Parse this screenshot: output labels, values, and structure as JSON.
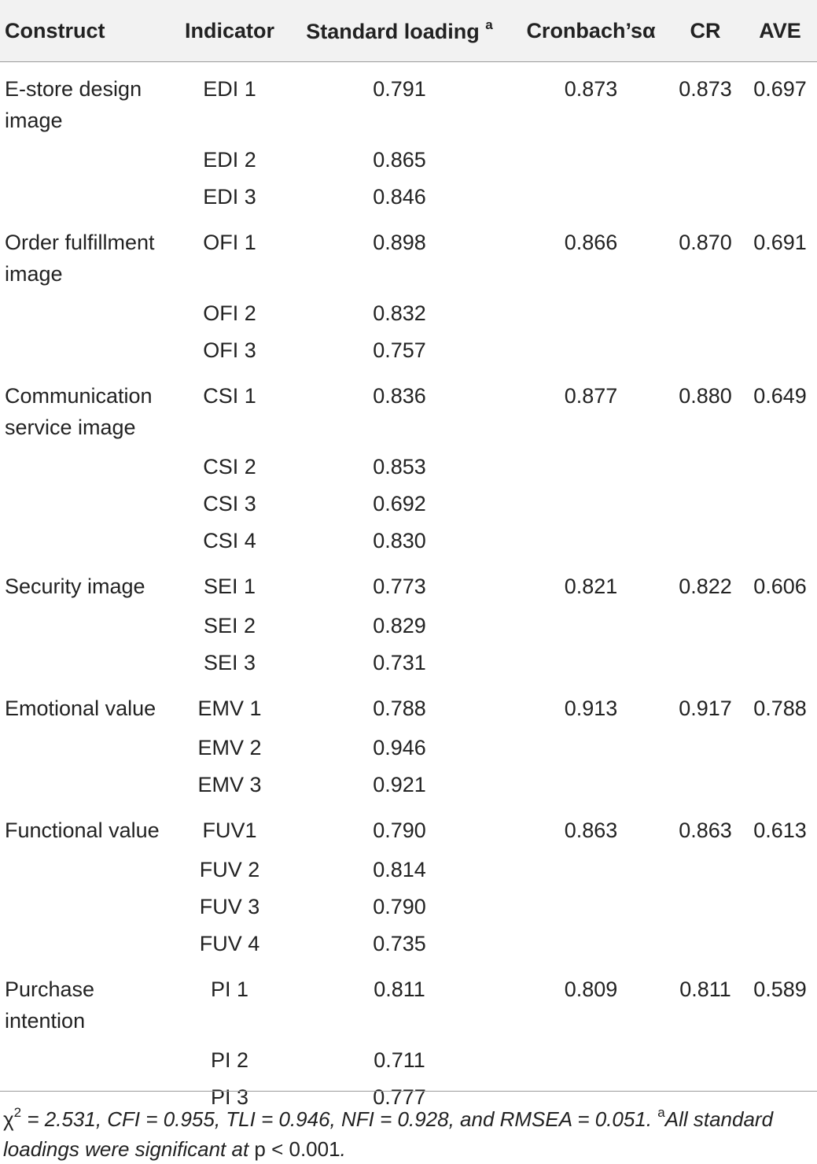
{
  "headers": [
    "Construct",
    "Indicator",
    "Standard loading",
    "Cronbach’sα",
    "CR",
    "AVE"
  ],
  "header_loading_sup": "a",
  "groups": [
    {
      "construct": "E-store design image",
      "cronbach": "0.873",
      "cr": "0.873",
      "ave": "0.697",
      "rows": [
        {
          "indicator": "EDI 1",
          "loading": "0.791"
        },
        {
          "indicator": "EDI 2",
          "loading": "0.865"
        },
        {
          "indicator": "EDI 3",
          "loading": "0.846"
        }
      ]
    },
    {
      "construct": "Order fulfillment image",
      "cronbach": "0.866",
      "cr": "0.870",
      "ave": "0.691",
      "rows": [
        {
          "indicator": "OFI 1",
          "loading": "0.898"
        },
        {
          "indicator": "OFI 2",
          "loading": "0.832"
        },
        {
          "indicator": "OFI 3",
          "loading": "0.757"
        }
      ]
    },
    {
      "construct": "Communication service image",
      "cronbach": "0.877",
      "cr": "0.880",
      "ave": "0.649",
      "rows": [
        {
          "indicator": "CSI 1",
          "loading": "0.836"
        },
        {
          "indicator": "CSI 2",
          "loading": "0.853"
        },
        {
          "indicator": "CSI 3",
          "loading": "0.692"
        },
        {
          "indicator": "CSI 4",
          "loading": "0.830"
        }
      ]
    },
    {
      "construct": "Security image",
      "cronbach": "0.821",
      "cr": "0.822",
      "ave": "0.606",
      "rows": [
        {
          "indicator": "SEI 1",
          "loading": "0.773"
        },
        {
          "indicator": "SEI 2",
          "loading": "0.829"
        },
        {
          "indicator": "SEI 3",
          "loading": "0.731"
        }
      ]
    },
    {
      "construct": "Emotional value",
      "cronbach": "0.913",
      "cr": "0.917",
      "ave": "0.788",
      "rows": [
        {
          "indicator": "EMV 1",
          "loading": "0.788"
        },
        {
          "indicator": "EMV 2",
          "loading": "0.946"
        },
        {
          "indicator": "EMV 3",
          "loading": "0.921"
        }
      ]
    },
    {
      "construct": "Functional value",
      "cronbach": "0.863",
      "cr": "0.863",
      "ave": "0.613",
      "rows": [
        {
          "indicator": "FUV1",
          "loading": "0.790"
        },
        {
          "indicator": "FUV 2",
          "loading": "0.814"
        },
        {
          "indicator": "FUV 3",
          "loading": "0.790"
        },
        {
          "indicator": "FUV 4",
          "loading": "0.735"
        }
      ]
    },
    {
      "construct": "Purchase intention",
      "cronbach": "0.809",
      "cr": "0.811",
      "ave": "0.589",
      "rows": [
        {
          "indicator": "PI 1",
          "loading": "0.811"
        },
        {
          "indicator": "PI 2",
          "loading": "0.711"
        },
        {
          "indicator": "PI 3",
          "loading": "0.777"
        }
      ]
    }
  ],
  "footnote": {
    "chi": "χ",
    "chi_sup": "2",
    "fit": " = 2.531, CFI = 0.955, TLI = 0.946, NFI = 0.928, and RMSEA = 0.051. ",
    "note_sup": "a",
    "note_text": "All standard loadings were significant at ",
    "p_text": "p < 0.001",
    "end": "."
  }
}
